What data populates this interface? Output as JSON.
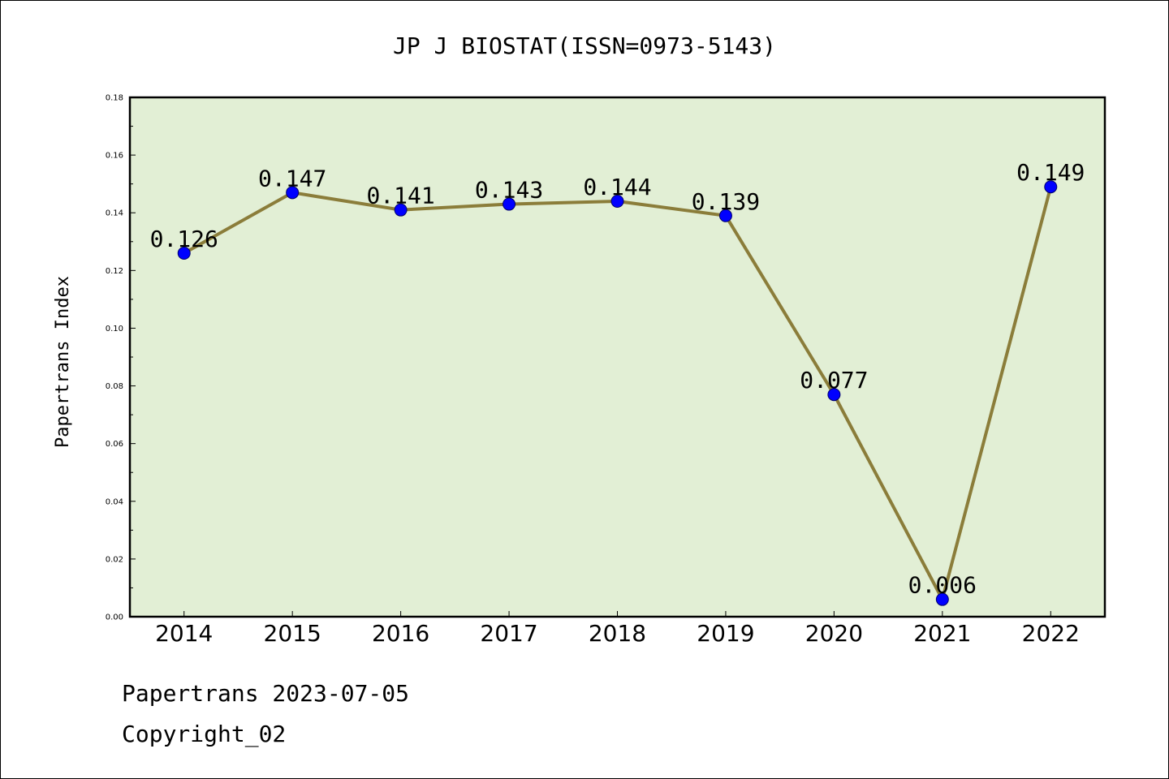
{
  "chart_data": {
    "type": "line",
    "title": "JP J BIOSTAT(ISSN=0973-5143)",
    "xlabel": "",
    "ylabel": "Papertrans Index",
    "x": [
      "2014",
      "2015",
      "2016",
      "2017",
      "2018",
      "2019",
      "2020",
      "2021",
      "2022"
    ],
    "series": [
      {
        "values": [
          0.126,
          0.147,
          0.141,
          0.143,
          0.144,
          0.139,
          0.077,
          0.006,
          0.149
        ],
        "labels": [
          "0.126",
          "0.147",
          "0.141",
          "0.143",
          "0.144",
          "0.139",
          "0.077",
          "0.006",
          "0.149"
        ],
        "line_color": "#8b7d3a",
        "marker_color": "#0000ff"
      }
    ],
    "ylim": [
      0,
      0.18
    ],
    "yticks": [
      "0.00",
      "0.02",
      "0.04",
      "0.06",
      "0.08",
      "0.10",
      "0.12",
      "0.14",
      "0.16",
      "0.18"
    ],
    "plot_background": "#e2efd5",
    "grid": false,
    "legend": "none"
  },
  "footer": {
    "line1": "Papertrans 2023-07-05",
    "line2": "Copyright_02"
  }
}
